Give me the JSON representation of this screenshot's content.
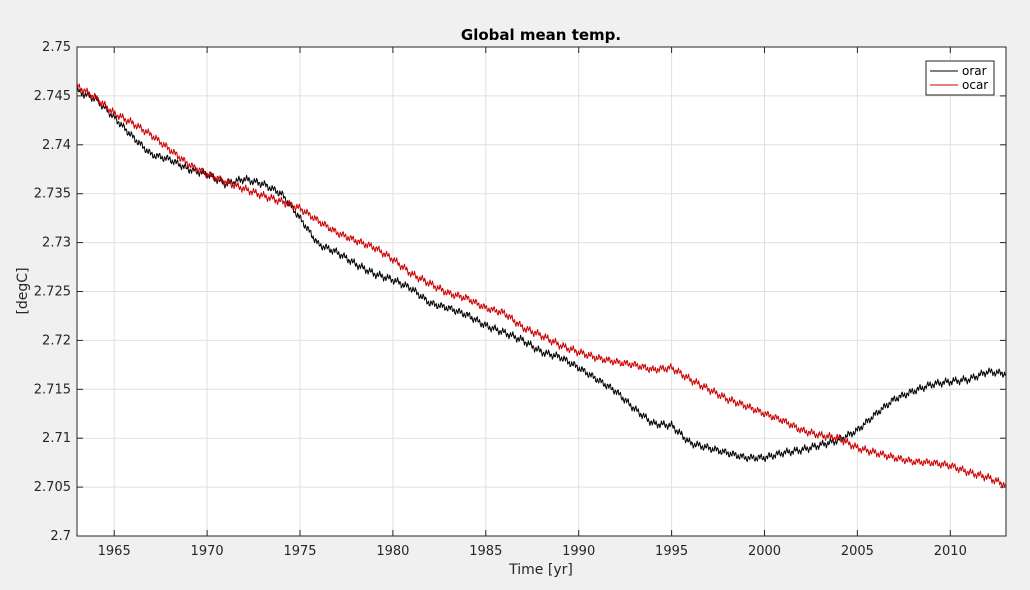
{
  "chart_data": {
    "type": "line",
    "title": "Global mean temp.",
    "xlabel": "Time [yr]",
    "ylabel": "[degC]",
    "xlim": [
      1963,
      2013
    ],
    "ylim": [
      2.7,
      2.75
    ],
    "xticks": [
      1965,
      1970,
      1975,
      1980,
      1985,
      1990,
      1995,
      2000,
      2005,
      2010
    ],
    "xtick_labels": [
      "1965",
      "1970",
      "1975",
      "1980",
      "1985",
      "1990",
      "1995",
      "2000",
      "2005",
      "2010"
    ],
    "yticks": [
      2.7,
      2.705,
      2.71,
      2.715,
      2.72,
      2.725,
      2.73,
      2.735,
      2.74,
      2.745,
      2.75
    ],
    "ytick_labels": [
      "2.7",
      "2.705",
      "2.71",
      "2.715",
      "2.72",
      "2.725",
      "2.73",
      "2.735",
      "2.74",
      "2.745",
      "2.75"
    ],
    "grid": true,
    "legend_position": "top-right",
    "series": [
      {
        "name": "orar",
        "color": "#000000",
        "x": [
          1963.0,
          1964.0,
          1965.0,
          1966.0,
          1967.0,
          1968.0,
          1969.0,
          1970.0,
          1971.0,
          1972.0,
          1973.0,
          1974.0,
          1975.0,
          1976.0,
          1977.0,
          1978.0,
          1979.0,
          1980.0,
          1981.0,
          1982.0,
          1983.0,
          1984.0,
          1985.0,
          1986.0,
          1987.0,
          1988.0,
          1989.0,
          1990.0,
          1991.0,
          1992.0,
          1993.0,
          1994.0,
          1995.0,
          1996.0,
          1997.0,
          1998.0,
          1999.0,
          2000.0,
          2001.0,
          2002.0,
          2003.0,
          2004.0,
          2005.0,
          2006.0,
          2007.0,
          2008.0,
          2009.0,
          2010.0,
          2011.0,
          2012.0,
          2013.0
        ],
        "y": [
          2.7455,
          2.7447,
          2.7428,
          2.7408,
          2.739,
          2.7385,
          2.7375,
          2.737,
          2.736,
          2.7365,
          2.736,
          2.735,
          2.7325,
          2.7298,
          2.729,
          2.7278,
          2.7268,
          2.7262,
          2.7253,
          2.7238,
          2.7233,
          2.7226,
          2.7215,
          2.7208,
          2.72,
          2.7188,
          2.7183,
          2.7172,
          2.716,
          2.7148,
          2.713,
          2.7115,
          2.7113,
          2.7095,
          2.709,
          2.7085,
          2.708,
          2.708,
          2.7085,
          2.7088,
          2.7093,
          2.7098,
          2.7108,
          2.7125,
          2.714,
          2.7148,
          2.7155,
          2.7158,
          2.716,
          2.7168,
          2.7166
        ]
      },
      {
        "name": "ocar",
        "color": "#cc0000",
        "x": [
          1963.0,
          1964.0,
          1965.0,
          1966.0,
          1967.0,
          1968.0,
          1969.0,
          1970.0,
          1971.0,
          1972.0,
          1973.0,
          1974.0,
          1975.0,
          1976.0,
          1977.0,
          1978.0,
          1979.0,
          1980.0,
          1981.0,
          1982.0,
          1983.0,
          1984.0,
          1985.0,
          1986.0,
          1987.0,
          1988.0,
          1989.0,
          1990.0,
          1991.0,
          1992.0,
          1993.0,
          1994.0,
          1995.0,
          1996.0,
          1997.0,
          1998.0,
          1999.0,
          2000.0,
          2001.0,
          2002.0,
          2003.0,
          2004.0,
          2005.0,
          2006.0,
          2007.0,
          2008.0,
          2009.0,
          2010.0,
          2011.0,
          2012.0,
          2013.0
        ],
        "y": [
          2.746,
          2.7448,
          2.7432,
          2.7422,
          2.741,
          2.7395,
          2.738,
          2.737,
          2.7362,
          2.7355,
          2.7348,
          2.7342,
          2.7335,
          2.7322,
          2.731,
          2.7302,
          2.7295,
          2.7283,
          2.7268,
          2.7258,
          2.7248,
          2.7243,
          2.7233,
          2.7228,
          2.7213,
          2.7205,
          2.7195,
          2.7188,
          2.7182,
          2.7178,
          2.7175,
          2.717,
          2.7172,
          2.716,
          2.715,
          2.714,
          2.7133,
          2.7125,
          2.7118,
          2.7108,
          2.7103,
          2.71,
          2.709,
          2.7085,
          2.708,
          2.7076,
          2.7075,
          2.7072,
          2.7065,
          2.706,
          2.7052
        ]
      }
    ]
  }
}
